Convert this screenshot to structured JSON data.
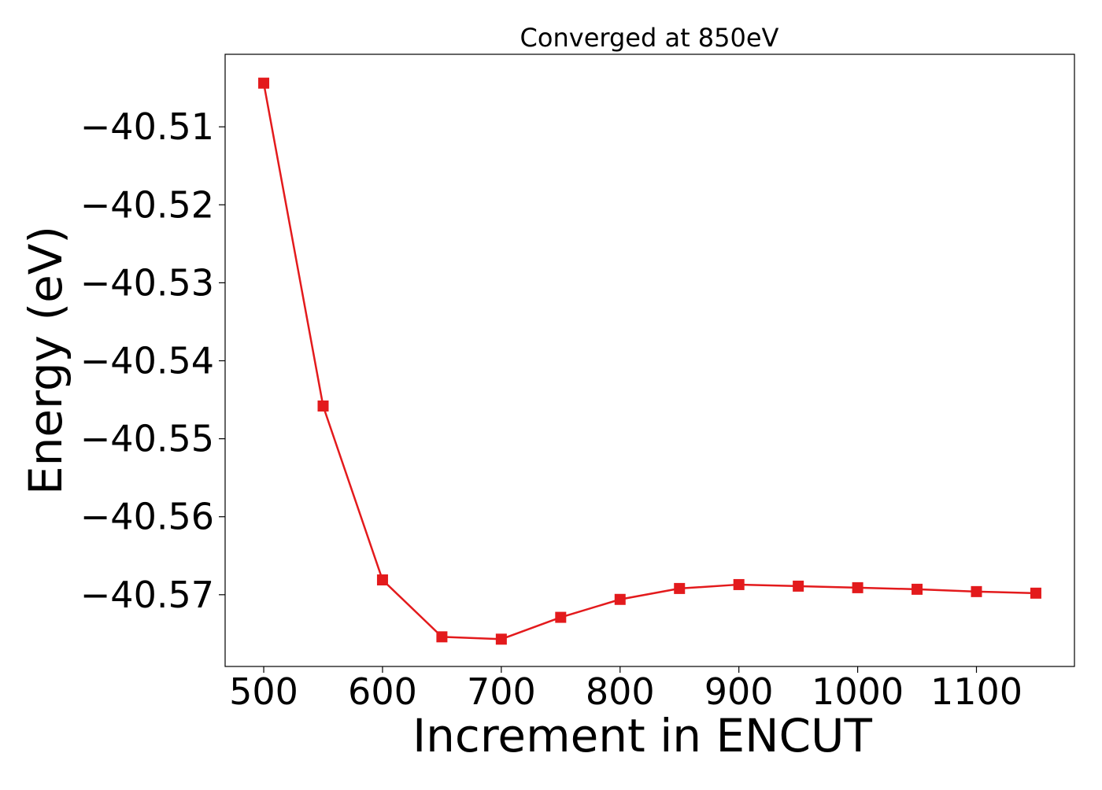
{
  "chart_data": {
    "type": "line",
    "title": "Converged at 850eV",
    "xlabel": "Increment in ENCUT",
    "ylabel": "Energy (eV)",
    "x": [
      500,
      550,
      600,
      650,
      700,
      750,
      800,
      850,
      900,
      950,
      1000,
      1050,
      1100,
      1150
    ],
    "series": [
      {
        "values": [
          -40.5044,
          -40.5458,
          -40.5681,
          -40.5754,
          -40.5757,
          -40.5729,
          -40.5706,
          -40.5692,
          -40.5687,
          -40.5689,
          -40.5691,
          -40.5693,
          -40.5696,
          -40.5698
        ],
        "color": "#e31a1c",
        "marker": "square"
      }
    ],
    "x_ticks": [
      500,
      600,
      700,
      800,
      900,
      1000,
      1100
    ],
    "x_tick_labels": [
      "500",
      "600",
      "700",
      "800",
      "900",
      "1000",
      "1100"
    ],
    "y_ticks": [
      -40.51,
      -40.52,
      -40.53,
      -40.54,
      -40.55,
      -40.56,
      -40.57
    ],
    "y_tick_labels": [
      "−40.51",
      "−40.52",
      "−40.53",
      "−40.54",
      "−40.55",
      "−40.56",
      "−40.57"
    ],
    "xlim": [
      467.5,
      1182.5
    ],
    "ylim": [
      -40.5792,
      -40.5007
    ],
    "grid": false,
    "legend": "none"
  }
}
